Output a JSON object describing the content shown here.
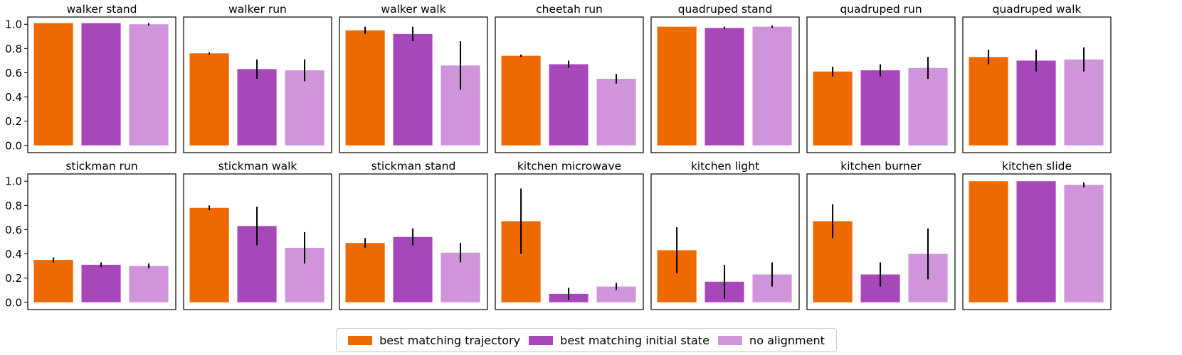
{
  "colors": {
    "best_trajectory": "#EE6A00",
    "best_initial_state": "#A847BA",
    "no_alignment": "#CF94DA",
    "error_bar": "#000000",
    "frame": "#000000"
  },
  "legend": {
    "items": [
      {
        "label": "best matching trajectory",
        "color_key": "best_trajectory"
      },
      {
        "label": "best matching initial state",
        "color_key": "best_initial_state"
      },
      {
        "label": "no alignment",
        "color_key": "no_alignment"
      }
    ],
    "placement": "bottom-center"
  },
  "chart_data": [
    {
      "type": "bar",
      "title": "walker stand",
      "ylim": [
        -0.06,
        1.06
      ],
      "yticks": [
        "0.0",
        "0.2",
        "0.4",
        "0.6",
        "0.8",
        "1.0"
      ],
      "categories": [
        "best matching trajectory",
        "best matching initial state",
        "no alignment"
      ],
      "values": [
        1.01,
        1.01,
        1.0
      ],
      "errors": [
        0.0,
        0.0,
        0.01
      ]
    },
    {
      "type": "bar",
      "title": "walker run",
      "ylim": [
        -0.06,
        1.06
      ],
      "categories": [
        "best matching trajectory",
        "best matching initial state",
        "no alignment"
      ],
      "values": [
        0.76,
        0.63,
        0.62
      ],
      "errors": [
        0.01,
        0.08,
        0.09
      ]
    },
    {
      "type": "bar",
      "title": "walker walk",
      "ylim": [
        -0.06,
        1.06
      ],
      "categories": [
        "best matching trajectory",
        "best matching initial state",
        "no alignment"
      ],
      "values": [
        0.95,
        0.92,
        0.66
      ],
      "errors": [
        0.03,
        0.06,
        0.2
      ]
    },
    {
      "type": "bar",
      "title": "cheetah run",
      "ylim": [
        -0.06,
        1.06
      ],
      "categories": [
        "best matching trajectory",
        "best matching initial state",
        "no alignment"
      ],
      "values": [
        0.74,
        0.67,
        0.55
      ],
      "errors": [
        0.01,
        0.03,
        0.04
      ]
    },
    {
      "type": "bar",
      "title": "quadruped stand",
      "ylim": [
        -0.06,
        1.06
      ],
      "categories": [
        "best matching trajectory",
        "best matching initial state",
        "no alignment"
      ],
      "values": [
        0.98,
        0.97,
        0.98
      ],
      "errors": [
        0.0,
        0.01,
        0.01
      ]
    },
    {
      "type": "bar",
      "title": "quadruped run",
      "ylim": [
        -0.06,
        1.06
      ],
      "categories": [
        "best matching trajectory",
        "best matching initial state",
        "no alignment"
      ],
      "values": [
        0.61,
        0.62,
        0.64
      ],
      "errors": [
        0.04,
        0.05,
        0.09
      ]
    },
    {
      "type": "bar",
      "title": "quadruped walk",
      "ylim": [
        -0.06,
        1.06
      ],
      "categories": [
        "best matching trajectory",
        "best matching initial state",
        "no alignment"
      ],
      "values": [
        0.73,
        0.7,
        0.71
      ],
      "errors": [
        0.06,
        0.09,
        0.1
      ]
    },
    {
      "type": "bar",
      "title": "stickman run",
      "ylim": [
        -0.06,
        1.06
      ],
      "yticks": [
        "0.0",
        "0.2",
        "0.4",
        "0.6",
        "0.8",
        "1.0"
      ],
      "categories": [
        "best matching trajectory",
        "best matching initial state",
        "no alignment"
      ],
      "values": [
        0.35,
        0.31,
        0.3
      ],
      "errors": [
        0.02,
        0.02,
        0.02
      ]
    },
    {
      "type": "bar",
      "title": "stickman walk",
      "ylim": [
        -0.06,
        1.06
      ],
      "categories": [
        "best matching trajectory",
        "best matching initial state",
        "no alignment"
      ],
      "values": [
        0.78,
        0.63,
        0.45
      ],
      "errors": [
        0.02,
        0.16,
        0.13
      ]
    },
    {
      "type": "bar",
      "title": "stickman stand",
      "ylim": [
        -0.06,
        1.06
      ],
      "categories": [
        "best matching trajectory",
        "best matching initial state",
        "no alignment"
      ],
      "values": [
        0.49,
        0.54,
        0.41
      ],
      "errors": [
        0.04,
        0.07,
        0.08
      ]
    },
    {
      "type": "bar",
      "title": "kitchen microwave",
      "ylim": [
        -0.06,
        1.06
      ],
      "categories": [
        "best matching trajectory",
        "best matching initial state",
        "no alignment"
      ],
      "values": [
        0.67,
        0.07,
        0.13
      ],
      "errors": [
        0.27,
        0.05,
        0.03
      ]
    },
    {
      "type": "bar",
      "title": "kitchen light",
      "ylim": [
        -0.06,
        1.06
      ],
      "categories": [
        "best matching trajectory",
        "best matching initial state",
        "no alignment"
      ],
      "values": [
        0.43,
        0.17,
        0.23
      ],
      "errors": [
        0.19,
        0.14,
        0.1
      ]
    },
    {
      "type": "bar",
      "title": "kitchen burner",
      "ylim": [
        -0.06,
        1.06
      ],
      "categories": [
        "best matching trajectory",
        "best matching initial state",
        "no alignment"
      ],
      "values": [
        0.67,
        0.23,
        0.4
      ],
      "errors": [
        0.14,
        0.1,
        0.21
      ]
    },
    {
      "type": "bar",
      "title": "kitchen slide",
      "ylim": [
        -0.06,
        1.06
      ],
      "categories": [
        "best matching trajectory",
        "best matching initial state",
        "no alignment"
      ],
      "values": [
        1.0,
        1.0,
        0.97
      ],
      "errors": [
        0.0,
        0.0,
        0.02
      ]
    }
  ]
}
